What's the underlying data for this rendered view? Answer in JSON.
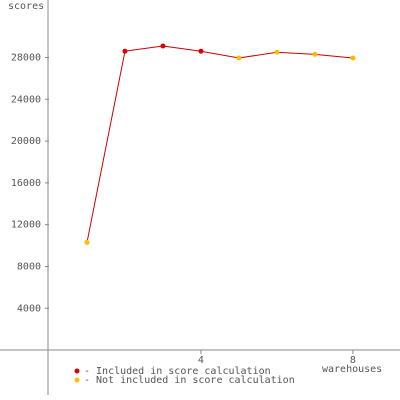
{
  "chart_data": {
    "type": "line",
    "ylabel": "scores",
    "xlabel": "warehouses",
    "x": [
      1,
      2,
      3,
      4,
      5,
      6,
      7,
      8
    ],
    "series": [
      {
        "name": "- Included in score calculation",
        "color": "#dd0000",
        "values": [
          null,
          28600,
          29100,
          28600,
          null,
          null,
          null,
          null
        ]
      },
      {
        "name": "- Not included in score calculation",
        "color": "#ffbb00",
        "values": [
          10300,
          null,
          null,
          null,
          27950,
          28500,
          28300,
          27950
        ]
      }
    ],
    "line_color": "#cc0000",
    "xlim": [
      -1.29,
      9.24
    ],
    "xticks": [
      4,
      8
    ],
    "ylim": [
      -4300,
      33500
    ],
    "yticks": [
      4000,
      8000,
      12000,
      16000,
      20000,
      24000,
      28000
    ]
  }
}
